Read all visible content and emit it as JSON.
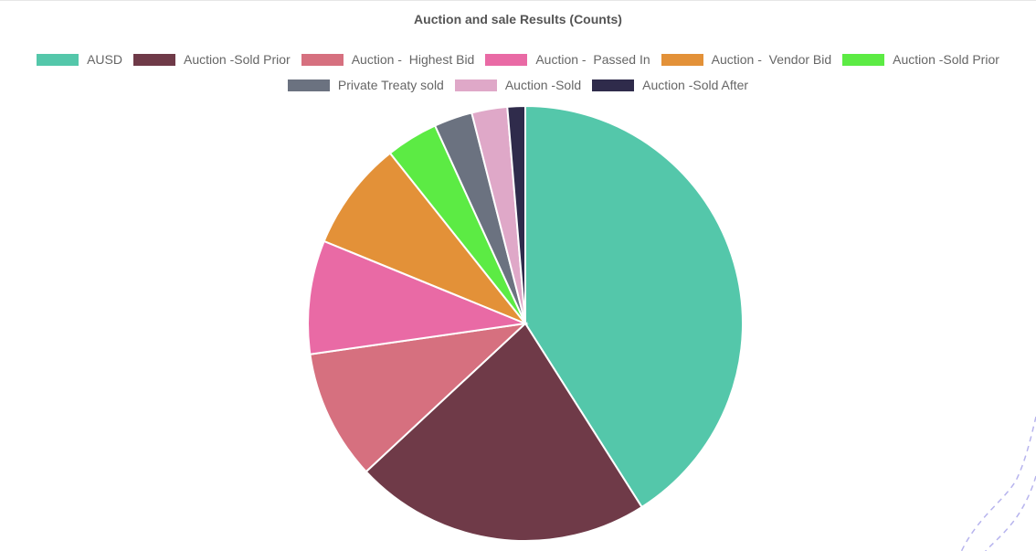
{
  "chart_data": {
    "type": "pie",
    "title": "Auction and sale Results (Counts)",
    "legend_position": "top",
    "slices": [
      {
        "label": "AUSD",
        "value": 40.3,
        "color": "#54c7aa"
      },
      {
        "label": "Auction -Sold Prior",
        "value": 21.7,
        "color": "#6f3a48"
      },
      {
        "label": "Auction -  Highest Bid",
        "value": 9.5,
        "color": "#d6707f"
      },
      {
        "label": "Auction -  Passed In",
        "value": 8.3,
        "color": "#e96aa5"
      },
      {
        "label": "Auction -  Vendor Bid",
        "value": 8.0,
        "color": "#e39138"
      },
      {
        "label": "Auction -Sold Prior",
        "value": 3.8,
        "color": "#5ceb44"
      },
      {
        "label": "Private Treaty sold",
        "value": 2.8,
        "color": "#6b7280"
      },
      {
        "label": "Auction -Sold",
        "value": 2.6,
        "color": "#dfa8c8"
      },
      {
        "label": "Auction -Sold After",
        "value": 1.3,
        "color": "#2f2b4b"
      }
    ]
  }
}
